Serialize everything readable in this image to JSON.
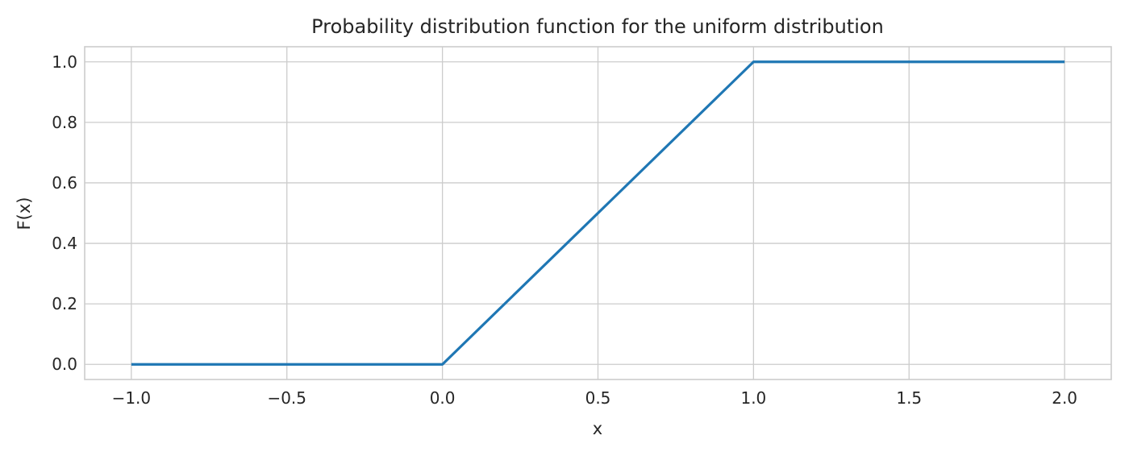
{
  "chart_data": {
    "type": "line",
    "title": "Probability distribution function for the uniform distribution",
    "xlabel": "x",
    "ylabel": "F(x)",
    "xlim": [
      -1.15,
      2.15
    ],
    "ylim": [
      -0.05,
      1.05
    ],
    "xticks": [
      -1.0,
      -0.5,
      0.0,
      0.5,
      1.0,
      1.5,
      2.0
    ],
    "xtick_labels": [
      "−1.0",
      "−0.5",
      "0.0",
      "0.5",
      "1.0",
      "1.5",
      "2.0"
    ],
    "yticks": [
      0.0,
      0.2,
      0.4,
      0.6,
      0.8,
      1.0
    ],
    "ytick_labels": [
      "0.0",
      "0.2",
      "0.4",
      "0.6",
      "0.8",
      "1.0"
    ],
    "grid": true,
    "series": [
      {
        "color": "#1f77b4",
        "x": [
          -1.0,
          0.0,
          1.0,
          2.0
        ],
        "y": [
          0.0,
          0.0,
          1.0,
          1.0
        ]
      }
    ]
  }
}
